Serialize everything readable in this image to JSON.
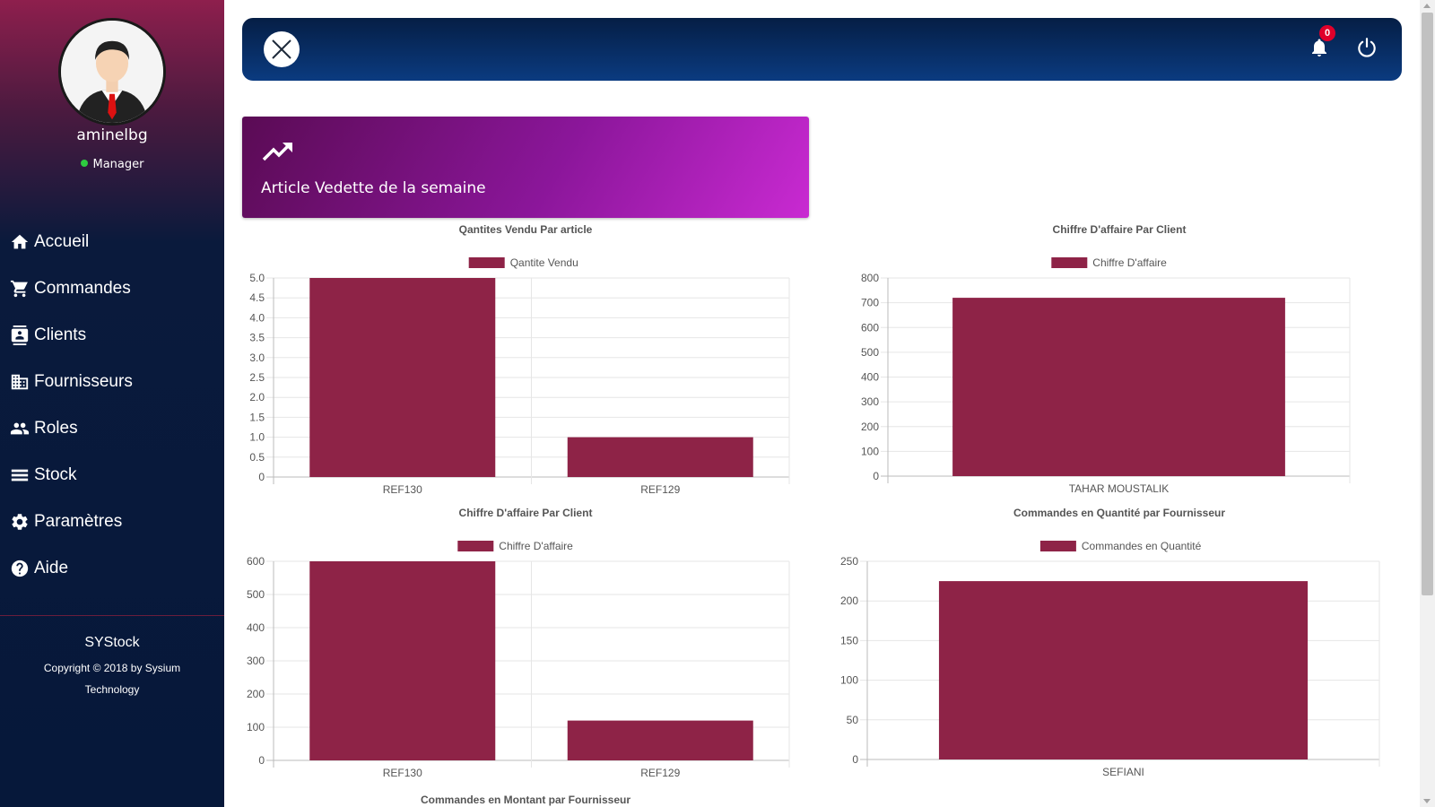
{
  "user": {
    "name": "aminelbg",
    "role": "Manager",
    "status_color": "#2ecc40"
  },
  "nav": [
    {
      "id": "accueil",
      "label": "Accueil",
      "icon": "home-icon"
    },
    {
      "id": "commandes",
      "label": "Commandes",
      "icon": "cart-icon"
    },
    {
      "id": "clients",
      "label": "Clients",
      "icon": "contact-card-icon"
    },
    {
      "id": "fournisseurs",
      "label": "Fournisseurs",
      "icon": "building-icon"
    },
    {
      "id": "roles",
      "label": "Roles",
      "icon": "people-icon"
    },
    {
      "id": "stock",
      "label": "Stock",
      "icon": "list-icon"
    },
    {
      "id": "parametres",
      "label": "Paramètres",
      "icon": "gear-icon"
    },
    {
      "id": "aide",
      "label": "Aide",
      "icon": "help-icon"
    }
  ],
  "footer": {
    "brand": "SYStock",
    "copyright": "Copyright © 2018 by Sysium Technology"
  },
  "topbar": {
    "notification_count": "0"
  },
  "feature": {
    "title": "Article Vedette de la semaine",
    "icon": "trending-up-icon"
  },
  "colors": {
    "bar": "#8e2347",
    "accent_gradient_start": "#5a0b54",
    "accent_gradient_end": "#c92ad2"
  },
  "chart_data": [
    {
      "type": "bar",
      "title": "Qantites Vendu Par article",
      "categories": [
        "REF130",
        "REF129"
      ],
      "series": [
        {
          "name": "Qantite Vendu",
          "values": [
            5,
            1
          ]
        }
      ],
      "ylim": [
        0,
        5
      ],
      "yticks": [
        "0",
        "0.5",
        "1.0",
        "1.5",
        "2.0",
        "2.5",
        "3.0",
        "3.5",
        "4.0",
        "4.5",
        "5.0"
      ],
      "legend": "top"
    },
    {
      "type": "bar",
      "title": "Chiffre D'affaire Par Client",
      "categories": [
        "TAHAR MOUSTALIK"
      ],
      "series": [
        {
          "name": "Chiffre D'affaire",
          "values": [
            720
          ]
        }
      ],
      "ylim": [
        0,
        800
      ],
      "yticks": [
        "0",
        "100",
        "200",
        "300",
        "400",
        "500",
        "600",
        "700",
        "800"
      ],
      "legend": "top"
    },
    {
      "type": "bar",
      "title": "Chiffre D'affaire Par Client",
      "categories": [
        "REF130",
        "REF129"
      ],
      "series": [
        {
          "name": "Chiffre D'affaire",
          "values": [
            600,
            120
          ]
        }
      ],
      "ylim": [
        0,
        600
      ],
      "yticks": [
        "0",
        "100",
        "200",
        "300",
        "400",
        "500",
        "600"
      ],
      "legend": "top"
    },
    {
      "type": "bar",
      "title": "Commandes en Quantité par Fournisseur",
      "categories": [
        "SEFIANI"
      ],
      "series": [
        {
          "name": "Commandes en Quantité",
          "values": [
            225
          ]
        }
      ],
      "ylim": [
        0,
        250
      ],
      "yticks": [
        "0",
        "50",
        "100",
        "150",
        "200",
        "250"
      ],
      "legend": "top"
    }
  ],
  "next_chart_title": "Commandes en Montant par Fournisseur"
}
